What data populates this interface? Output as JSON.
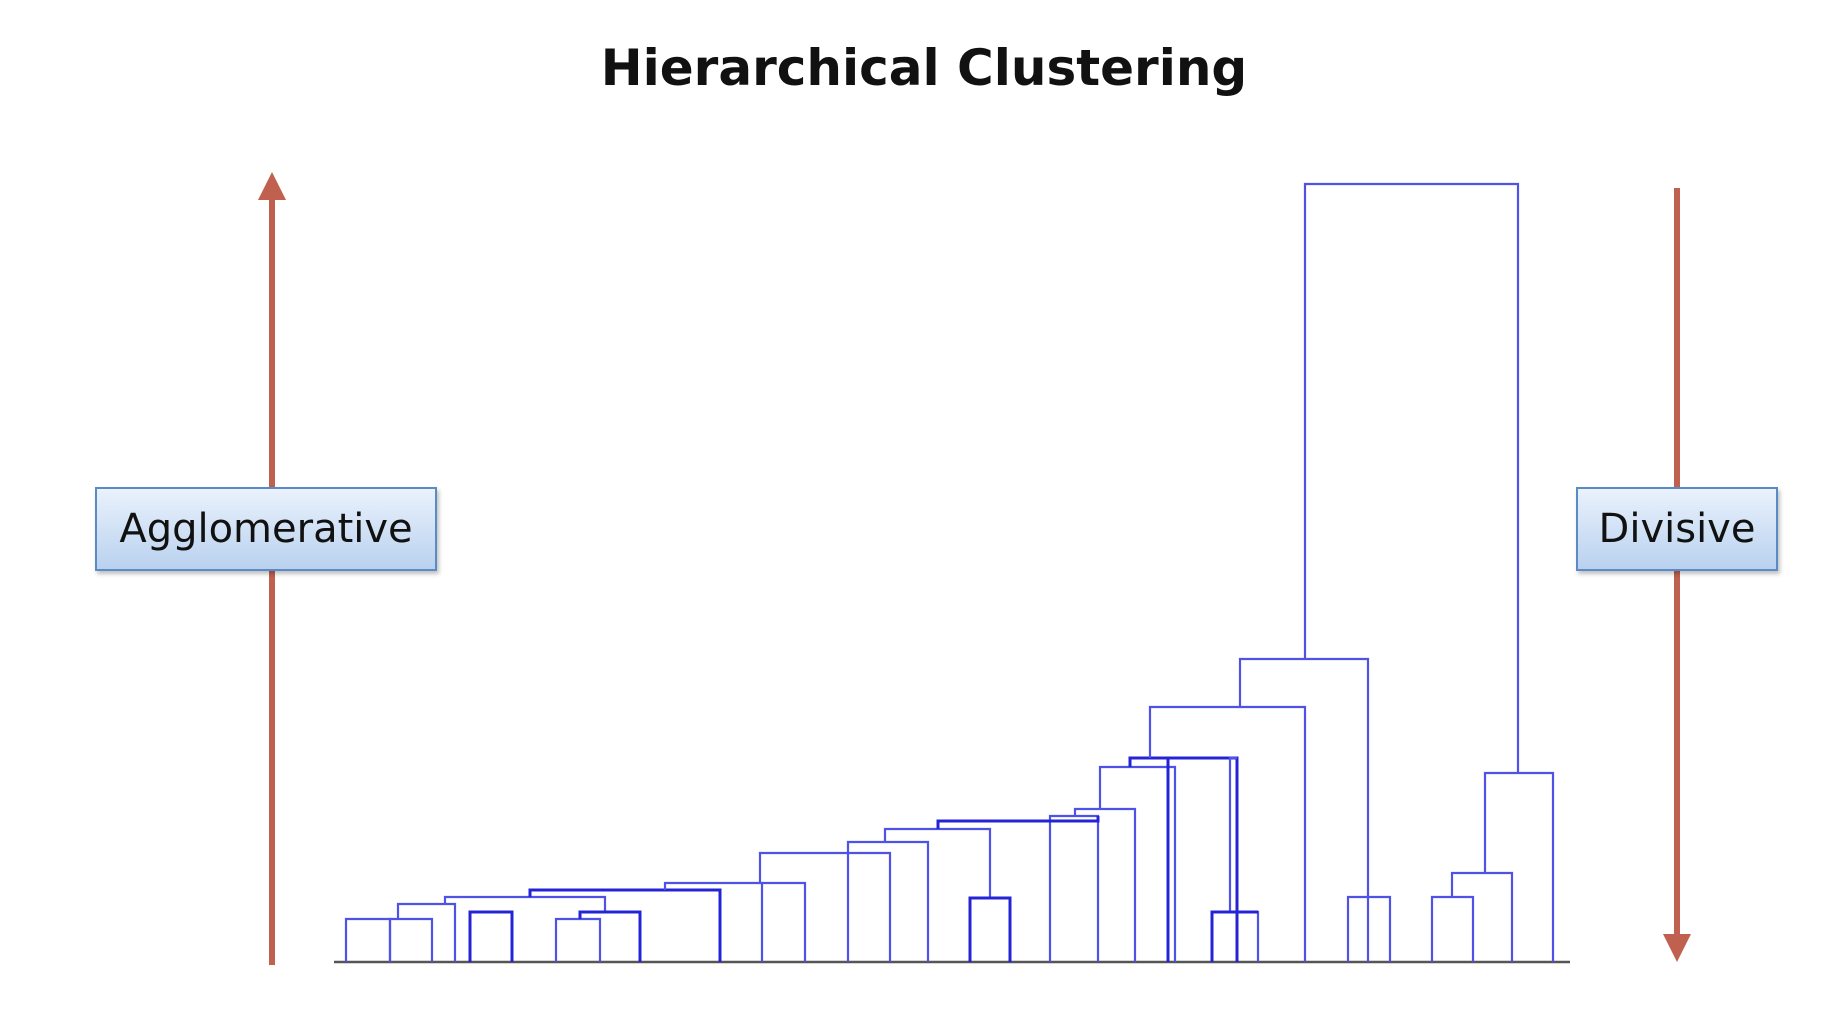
{
  "title": "Hierarchical Clustering",
  "labels": {
    "agglomerative": "Agglomerative",
    "divisive": "Divisive"
  },
  "colors": {
    "dendrogram": "#4f52e6",
    "dendrogram_highlight": "#2424d6",
    "arrow": "#c0604f",
    "label_border": "#5a8bc4",
    "label_fill": "#b9d1ef"
  },
  "arrows": {
    "agglomerative_direction": "up",
    "divisive_direction": "down"
  }
}
